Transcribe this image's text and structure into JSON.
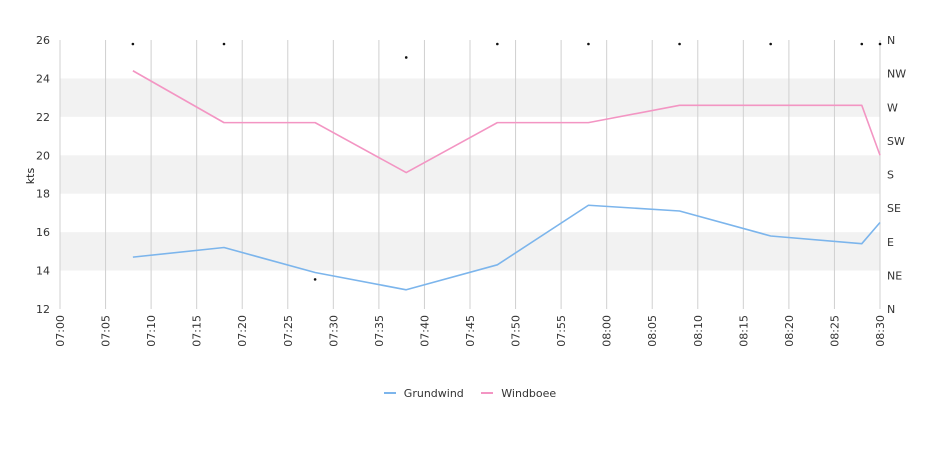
{
  "chart_data": {
    "type": "line",
    "title": "",
    "xlabel": "",
    "ylabel": "kts",
    "x": [
      "07:08",
      "07:18",
      "07:28",
      "07:38",
      "07:48",
      "07:58",
      "08:08",
      "08:18",
      "08:28",
      "08:30"
    ],
    "ylim": [
      12,
      26
    ],
    "y_ticks": [
      "12",
      "14",
      "16",
      "18",
      "20",
      "22",
      "24",
      "26"
    ],
    "x_ticks": [
      "07:00",
      "07:05",
      "07:10",
      "07:15",
      "07:20",
      "07:25",
      "07:30",
      "07:35",
      "07:40",
      "07:45",
      "07:50",
      "07:55",
      "08:00",
      "08:05",
      "08:10",
      "08:15",
      "08:20",
      "08:25",
      "08:30"
    ],
    "y2_ticks": [
      "N",
      "NE",
      "E",
      "SE",
      "S",
      "SW",
      "W",
      "NW",
      "N"
    ],
    "grid": true,
    "legend_position": "bottom",
    "series": [
      {
        "name": "Grundwind",
        "color": "#7cb5ec",
        "values": [
          14.7,
          15.2,
          13.9,
          13.0,
          14.3,
          17.4,
          17.1,
          15.8,
          15.4,
          16.5
        ]
      },
      {
        "name": "Windboee",
        "color": "#f395c3",
        "values": [
          24.4,
          21.7,
          21.7,
          19.1,
          21.7,
          21.7,
          22.6,
          22.6,
          22.6,
          20.0
        ]
      }
    ],
    "direction_markers": [
      {
        "x": "07:08",
        "dir": 8
      },
      {
        "x": "07:18",
        "dir": 8
      },
      {
        "x": "07:28",
        "dir": 1
      },
      {
        "x": "07:38",
        "dir": 7.6
      },
      {
        "x": "07:48",
        "dir": 8
      },
      {
        "x": "07:58",
        "dir": 8
      },
      {
        "x": "08:08",
        "dir": 8
      },
      {
        "x": "08:18",
        "dir": 8
      },
      {
        "x": "08:28",
        "dir": 8
      },
      {
        "x": "08:30",
        "dir": 8
      }
    ]
  },
  "colors": {
    "band": "#f2f2f2",
    "gridline": "#d0d0d0"
  }
}
